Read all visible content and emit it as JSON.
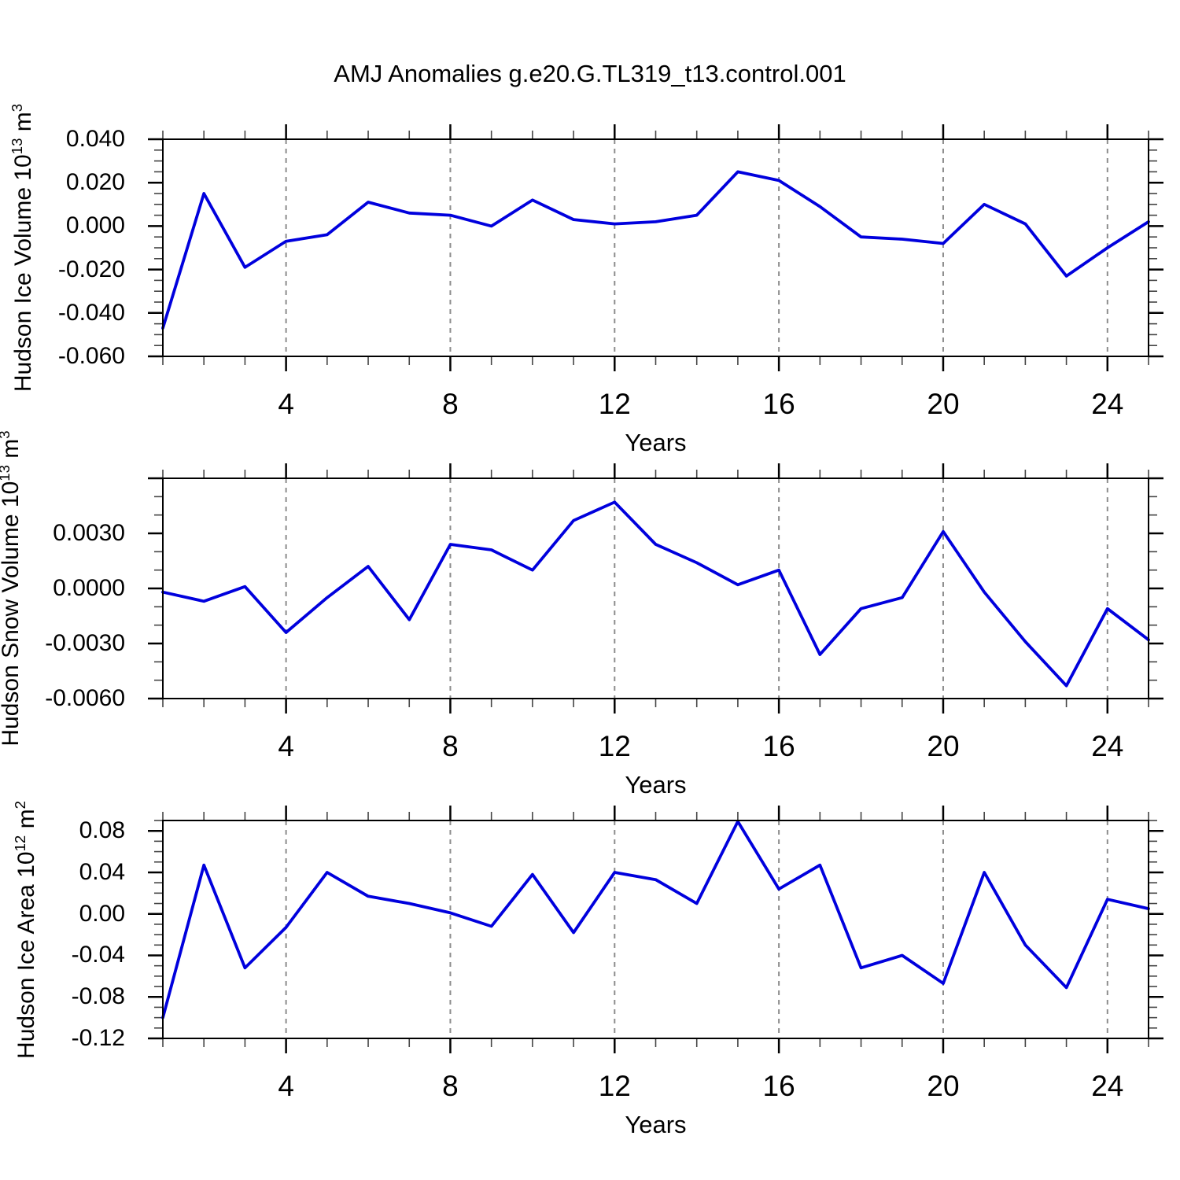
{
  "title": "AMJ Anomalies g.e20.G.TL319_t13.control.001",
  "xlabel": "Years",
  "chart_data": [
    {
      "type": "line",
      "name": "hudson-ice-volume",
      "ylabel": {
        "text": "Hudson Ice Volume",
        "scale_base": "10",
        "scale_exp": "13",
        "unit": "m",
        "unit_exp": "3"
      },
      "xlabel": "Years",
      "x": [
        1,
        2,
        3,
        4,
        5,
        6,
        7,
        8,
        9,
        10,
        11,
        12,
        13,
        14,
        15,
        16,
        17,
        18,
        19,
        20,
        21,
        22,
        23,
        24,
        25
      ],
      "values": [
        -0.047,
        0.015,
        -0.019,
        -0.007,
        -0.004,
        0.011,
        0.006,
        0.005,
        0.0,
        0.012,
        0.003,
        0.001,
        0.002,
        0.005,
        0.025,
        0.021,
        0.009,
        -0.005,
        -0.006,
        -0.008,
        0.01,
        0.001,
        -0.023,
        -0.01,
        0.002
      ],
      "xlim": [
        1,
        25
      ],
      "ylim": [
        -0.06,
        0.04
      ],
      "ytick_values": [
        0.04,
        0.02,
        0.0,
        -0.02,
        -0.04,
        -0.06
      ],
      "ytick_labels": [
        "0.040",
        "0.020",
        "0.000",
        "-0.020",
        "-0.040",
        "-0.060"
      ],
      "ytick_major_extra": [],
      "y_minor_step": 0.005,
      "xtick_major": [
        4,
        8,
        12,
        16,
        20,
        24
      ],
      "xtick_labels": [
        "4",
        "8",
        "12",
        "16",
        "20",
        "24"
      ],
      "grid_years": [
        4,
        8,
        12,
        16,
        20,
        24
      ],
      "grid_style": "vertical-dashed",
      "line_color": "#0000dd"
    },
    {
      "type": "line",
      "name": "hudson-snow-volume",
      "ylabel": {
        "text": "Hudson Snow Volume",
        "scale_base": "10",
        "scale_exp": "13",
        "unit": "m",
        "unit_exp": "3"
      },
      "xlabel": "Years",
      "x": [
        1,
        2,
        3,
        4,
        5,
        6,
        7,
        8,
        9,
        10,
        11,
        12,
        13,
        14,
        15,
        16,
        17,
        18,
        19,
        20,
        21,
        22,
        23,
        24,
        25
      ],
      "values": [
        -0.0002,
        -0.0007,
        0.0001,
        -0.0024,
        -0.0005,
        0.0012,
        -0.0017,
        0.0024,
        0.0021,
        0.001,
        0.0037,
        0.0047,
        0.0024,
        0.0014,
        0.0002,
        0.001,
        -0.0036,
        -0.0011,
        -0.0005,
        0.0031,
        -0.0002,
        -0.0029,
        -0.0053,
        -0.0011,
        -0.0028
      ],
      "xlim": [
        1,
        25
      ],
      "ylim": [
        -0.006,
        0.006
      ],
      "ytick_values": [
        0.003,
        0.0,
        -0.003,
        -0.006
      ],
      "ytick_labels": [
        "0.0030",
        "0.0000",
        "-0.0030",
        "-0.0060"
      ],
      "ytick_major_extra": [
        0.006
      ],
      "y_minor_step": 0.001,
      "xtick_major": [
        4,
        8,
        12,
        16,
        20,
        24
      ],
      "xtick_labels": [
        "4",
        "8",
        "12",
        "16",
        "20",
        "24"
      ],
      "grid_years": [
        4,
        8,
        12,
        16,
        20,
        24
      ],
      "grid_style": "vertical-dashed",
      "line_color": "#0000dd"
    },
    {
      "type": "line",
      "name": "hudson-ice-area",
      "ylabel": {
        "text": "Hudson Ice Area",
        "scale_base": "10",
        "scale_exp": "12",
        "unit": "m",
        "unit_exp": "2"
      },
      "xlabel": "Years",
      "x": [
        1,
        2,
        3,
        4,
        5,
        6,
        7,
        8,
        9,
        10,
        11,
        12,
        13,
        14,
        15,
        16,
        17,
        18,
        19,
        20,
        21,
        22,
        23,
        24,
        25
      ],
      "values": [
        -0.1,
        0.047,
        -0.052,
        -0.013,
        0.04,
        0.017,
        0.01,
        0.001,
        -0.012,
        0.038,
        -0.018,
        0.04,
        0.033,
        0.01,
        0.089,
        0.024,
        0.047,
        -0.052,
        -0.04,
        -0.067,
        0.04,
        -0.03,
        -0.071,
        0.014,
        0.005
      ],
      "xlim": [
        1,
        25
      ],
      "ylim": [
        -0.12,
        0.09
      ],
      "ytick_values": [
        0.08,
        0.04,
        0.0,
        -0.04,
        -0.08,
        -0.12
      ],
      "ytick_labels": [
        "0.08",
        "0.04",
        "0.00",
        "-0.04",
        "-0.08",
        "-0.12"
      ],
      "ytick_major_extra": [],
      "y_minor_step": 0.01,
      "xtick_major": [
        4,
        8,
        12,
        16,
        20,
        24
      ],
      "xtick_labels": [
        "4",
        "8",
        "12",
        "16",
        "20",
        "24"
      ],
      "grid_years": [
        4,
        8,
        12,
        16,
        20,
        24
      ],
      "grid_style": "vertical-dashed",
      "line_color": "#0000dd"
    }
  ]
}
